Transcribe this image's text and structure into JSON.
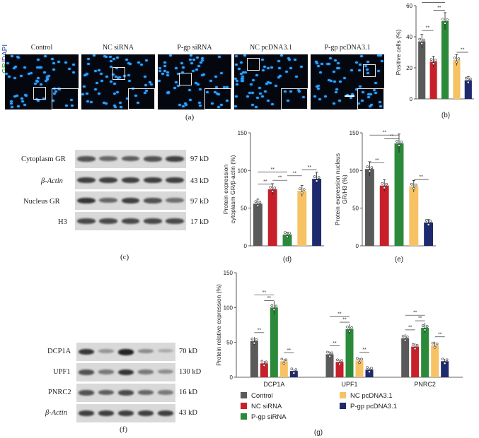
{
  "panel_a": {
    "groups": [
      "Control",
      "NC siRNA",
      "P-gp siRNA",
      "NC pcDNA3.1",
      "P-gp pcDNA3.1"
    ],
    "stain_label_green": "GR",
    "stain_label_blue": "/DAPI",
    "letter": "(a)"
  },
  "panel_c": {
    "rows": [
      {
        "label": "Cytoplasm GR",
        "kd": "97 kD"
      },
      {
        "label": "β-Actin",
        "kd": "43 kD"
      },
      {
        "label": "Nucleus GR",
        "kd": "97 kD"
      },
      {
        "label": "H3",
        "kd": "17 kD"
      }
    ],
    "letter": "(c)"
  },
  "panel_f": {
    "rows": [
      {
        "label": "DCP1A",
        "kd": "70 kD"
      },
      {
        "label": "UPF1",
        "kd": "130 kD"
      },
      {
        "label": "PNRC2",
        "kd": "16 kD"
      },
      {
        "label": "β-Actin",
        "kd": "43 kD"
      }
    ],
    "letter": "(f)"
  },
  "colors": {
    "Control": "#5a5a5a",
    "NC siRNA": "#c8202b",
    "P-gp siRNA": "#2a8a3a",
    "NC pcDNA3.1": "#f6c264",
    "P-gp pcDNA3.1": "#1e2a6e"
  },
  "significance_mark": "**",
  "chart_data": [
    {
      "id": "b",
      "type": "bar",
      "letter": "(b)",
      "categories": [
        "Control",
        "NC siRNA",
        "P-gp siRNA",
        "NC pcDNA3.1",
        "P-gp pcDNA3.1"
      ],
      "values": [
        37,
        24,
        50,
        25,
        12
      ],
      "ylabel": "Positive cells (%)",
      "ylim": [
        0,
        60
      ],
      "yticks": [
        0,
        20,
        40,
        60
      ]
    },
    {
      "id": "d",
      "type": "bar",
      "letter": "(d)",
      "categories": [
        "Control",
        "NC siRNA",
        "P-gp siRNA",
        "NC pcDNA3.1",
        "P-gp pcDNA3.1"
      ],
      "values": [
        56,
        75,
        15,
        73,
        89
      ],
      "ylabel": "Protein expression cytoplasm GR/β-actin (%)",
      "ylim": [
        0,
        150
      ],
      "yticks": [
        0,
        50,
        100,
        150
      ]
    },
    {
      "id": "e",
      "type": "bar",
      "letter": "(e)",
      "categories": [
        "Control",
        "NC siRNA",
        "P-gp siRNA",
        "NC pcDNA3.1",
        "P-gp pcDNA3.1"
      ],
      "values": [
        102,
        80,
        136,
        79,
        31
      ],
      "ylabel": "Protein expression nucleus GR/H3 (%)",
      "ylim": [
        0,
        150
      ],
      "yticks": [
        0,
        50,
        100,
        150
      ]
    },
    {
      "id": "g",
      "type": "bar",
      "letter": "(g)",
      "categories": [
        "DCP1A",
        "UPF1",
        "PNRC2"
      ],
      "series": [
        {
          "name": "Control",
          "values": [
            52,
            33,
            56
          ]
        },
        {
          "name": "NC siRNA",
          "values": [
            20,
            22,
            44
          ]
        },
        {
          "name": "P-gp siRNA",
          "values": [
            100,
            69,
            71
          ]
        },
        {
          "name": "NC pcDNA3.1",
          "values": [
            23,
            24,
            46
          ]
        },
        {
          "name": "P-gp pcDNA3.1",
          "values": [
            9,
            11,
            23
          ]
        }
      ],
      "ylabel": "Protein relative expression (%)",
      "ylim": [
        0,
        150
      ],
      "yticks": [
        0,
        50,
        100,
        150
      ],
      "legend": [
        "Control",
        "NC siRNA",
        "P-gp siRNA",
        "NC pcDNA3.1",
        "P-gp pcDNA3.1"
      ]
    }
  ]
}
